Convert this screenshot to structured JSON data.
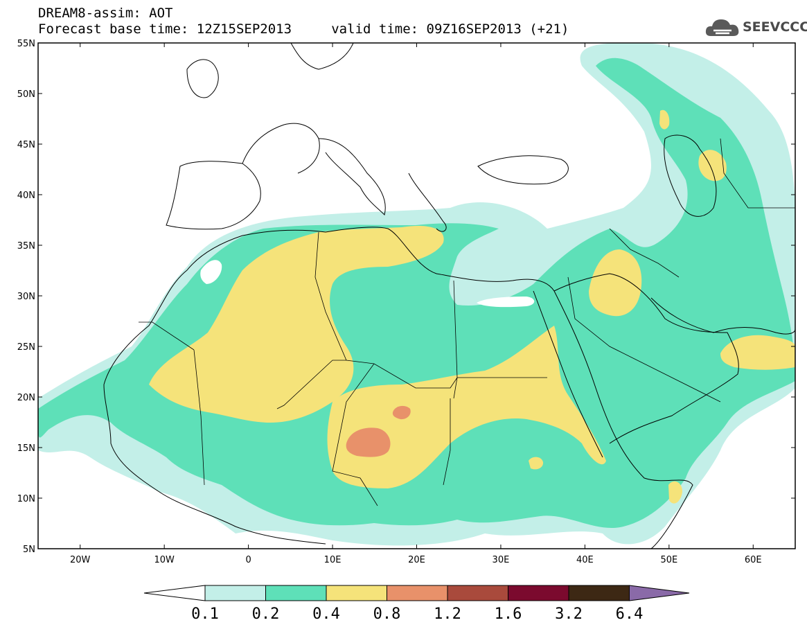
{
  "title_line1": "DREAM8-assim: AOT",
  "title_line2": "Forecast base time: 12Z15SEP2013     valid time: 09Z16SEP2013 (+21)",
  "logo_text": "SEEVCCC",
  "logo_icon": "cloud-logo-icon",
  "map_extent": {
    "lon_min": -25,
    "lon_max": 65,
    "lat_min": 5,
    "lat_max": 55
  },
  "lat_ticks": [
    {
      "value": 55,
      "label": "55N"
    },
    {
      "value": 50,
      "label": "50N"
    },
    {
      "value": 45,
      "label": "45N"
    },
    {
      "value": 40,
      "label": "40N"
    },
    {
      "value": 35,
      "label": "35N"
    },
    {
      "value": 30,
      "label": "30N"
    },
    {
      "value": 25,
      "label": "25N"
    },
    {
      "value": 20,
      "label": "20N"
    },
    {
      "value": 15,
      "label": "15N"
    },
    {
      "value": 10,
      "label": "10N"
    },
    {
      "value": 5,
      "label": "5N"
    }
  ],
  "lon_ticks": [
    {
      "value": -20,
      "label": "20W"
    },
    {
      "value": -10,
      "label": "10W"
    },
    {
      "value": 0,
      "label": "0"
    },
    {
      "value": 10,
      "label": "10E"
    },
    {
      "value": 20,
      "label": "20E"
    },
    {
      "value": 30,
      "label": "30E"
    },
    {
      "value": 40,
      "label": "40E"
    },
    {
      "value": 50,
      "label": "50E"
    },
    {
      "value": 60,
      "label": "60E"
    }
  ],
  "colorbar": {
    "levels": [
      "0.1",
      "0.2",
      "0.4",
      "0.8",
      "1.2",
      "1.6",
      "3.2",
      "6.4"
    ],
    "colors": [
      "#ffffff",
      "#c3efe8",
      "#5ee0b8",
      "#f5e37a",
      "#e8916a",
      "#a94a3c",
      "#7b0a2e",
      "#3d2814",
      "#8a6aa8"
    ]
  }
}
